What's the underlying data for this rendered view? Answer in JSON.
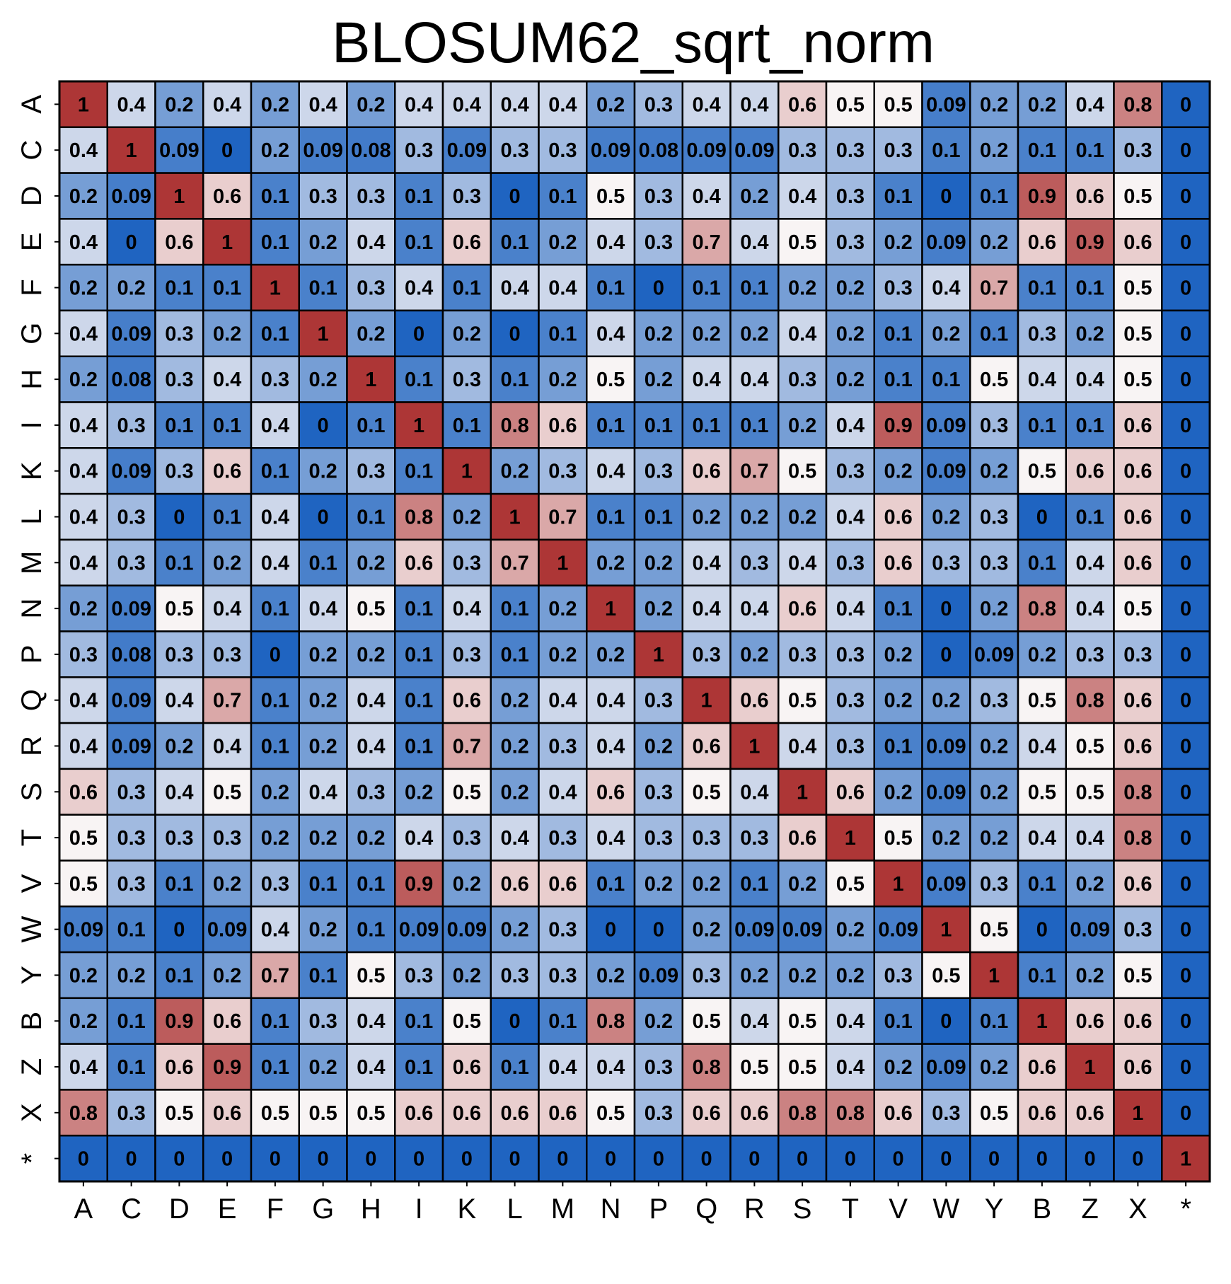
{
  "chart_data": {
    "type": "heatmap",
    "title": "BLOSUM62_sqrt_norm",
    "xlabel": "",
    "ylabel": "",
    "x_categories": [
      "A",
      "C",
      "D",
      "E",
      "F",
      "G",
      "H",
      "I",
      "K",
      "L",
      "M",
      "N",
      "P",
      "Q",
      "R",
      "S",
      "T",
      "V",
      "W",
      "Y",
      "B",
      "Z",
      "X",
      "*"
    ],
    "y_categories": [
      "A",
      "C",
      "D",
      "E",
      "F",
      "G",
      "H",
      "I",
      "K",
      "L",
      "M",
      "N",
      "P",
      "Q",
      "R",
      "S",
      "T",
      "V",
      "W",
      "Y",
      "B",
      "Z",
      "X",
      "*"
    ],
    "values": [
      [
        1,
        0.4,
        0.2,
        0.4,
        0.2,
        0.4,
        0.2,
        0.4,
        0.4,
        0.4,
        0.4,
        0.2,
        0.3,
        0.4,
        0.4,
        0.6,
        0.5,
        0.5,
        0.09,
        0.2,
        0.2,
        0.4,
        0.8,
        0
      ],
      [
        0.4,
        1,
        0.09,
        0,
        0.2,
        0.09,
        0.08,
        0.3,
        0.09,
        0.3,
        0.3,
        0.09,
        0.08,
        0.09,
        0.09,
        0.3,
        0.3,
        0.3,
        0.1,
        0.2,
        0.1,
        0.1,
        0.3,
        0
      ],
      [
        0.2,
        0.09,
        1,
        0.6,
        0.1,
        0.3,
        0.3,
        0.1,
        0.3,
        0,
        0.1,
        0.5,
        0.3,
        0.4,
        0.2,
        0.4,
        0.3,
        0.1,
        0,
        0.1,
        0.9,
        0.6,
        0.5,
        0
      ],
      [
        0.4,
        0,
        0.6,
        1,
        0.1,
        0.2,
        0.4,
        0.1,
        0.6,
        0.1,
        0.2,
        0.4,
        0.3,
        0.7,
        0.4,
        0.5,
        0.3,
        0.2,
        0.09,
        0.2,
        0.6,
        0.9,
        0.6,
        0
      ],
      [
        0.2,
        0.2,
        0.1,
        0.1,
        1,
        0.1,
        0.3,
        0.4,
        0.1,
        0.4,
        0.4,
        0.1,
        0,
        0.1,
        0.1,
        0.2,
        0.2,
        0.3,
        0.4,
        0.7,
        0.1,
        0.1,
        0.5,
        0
      ],
      [
        0.4,
        0.09,
        0.3,
        0.2,
        0.1,
        1,
        0.2,
        0,
        0.2,
        0,
        0.1,
        0.4,
        0.2,
        0.2,
        0.2,
        0.4,
        0.2,
        0.1,
        0.2,
        0.1,
        0.3,
        0.2,
        0.5,
        0
      ],
      [
        0.2,
        0.08,
        0.3,
        0.4,
        0.3,
        0.2,
        1,
        0.1,
        0.3,
        0.1,
        0.2,
        0.5,
        0.2,
        0.4,
        0.4,
        0.3,
        0.2,
        0.1,
        0.1,
        0.5,
        0.4,
        0.4,
        0.5,
        0
      ],
      [
        0.4,
        0.3,
        0.1,
        0.1,
        0.4,
        0,
        0.1,
        1,
        0.1,
        0.8,
        0.6,
        0.1,
        0.1,
        0.1,
        0.1,
        0.2,
        0.4,
        0.9,
        0.09,
        0.3,
        0.1,
        0.1,
        0.6,
        0
      ],
      [
        0.4,
        0.09,
        0.3,
        0.6,
        0.1,
        0.2,
        0.3,
        0.1,
        1,
        0.2,
        0.3,
        0.4,
        0.3,
        0.6,
        0.7,
        0.5,
        0.3,
        0.2,
        0.09,
        0.2,
        0.5,
        0.6,
        0.6,
        0
      ],
      [
        0.4,
        0.3,
        0,
        0.1,
        0.4,
        0,
        0.1,
        0.8,
        0.2,
        1,
        0.7,
        0.1,
        0.1,
        0.2,
        0.2,
        0.2,
        0.4,
        0.6,
        0.2,
        0.3,
        0,
        0.1,
        0.6,
        0
      ],
      [
        0.4,
        0.3,
        0.1,
        0.2,
        0.4,
        0.1,
        0.2,
        0.6,
        0.3,
        0.7,
        1,
        0.2,
        0.2,
        0.4,
        0.3,
        0.4,
        0.3,
        0.6,
        0.3,
        0.3,
        0.1,
        0.4,
        0.6,
        0
      ],
      [
        0.2,
        0.09,
        0.5,
        0.4,
        0.1,
        0.4,
        0.5,
        0.1,
        0.4,
        0.1,
        0.2,
        1,
        0.2,
        0.4,
        0.4,
        0.6,
        0.4,
        0.1,
        0,
        0.2,
        0.8,
        0.4,
        0.5,
        0
      ],
      [
        0.3,
        0.08,
        0.3,
        0.3,
        0,
        0.2,
        0.2,
        0.1,
        0.3,
        0.1,
        0.2,
        0.2,
        1,
        0.3,
        0.2,
        0.3,
        0.3,
        0.2,
        0,
        0.09,
        0.2,
        0.3,
        0.3,
        0
      ],
      [
        0.4,
        0.09,
        0.4,
        0.7,
        0.1,
        0.2,
        0.4,
        0.1,
        0.6,
        0.2,
        0.4,
        0.4,
        0.3,
        1,
        0.6,
        0.5,
        0.3,
        0.2,
        0.2,
        0.3,
        0.5,
        0.8,
        0.6,
        0
      ],
      [
        0.4,
        0.09,
        0.2,
        0.4,
        0.1,
        0.2,
        0.4,
        0.1,
        0.7,
        0.2,
        0.3,
        0.4,
        0.2,
        0.6,
        1,
        0.4,
        0.3,
        0.1,
        0.09,
        0.2,
        0.4,
        0.5,
        0.6,
        0
      ],
      [
        0.6,
        0.3,
        0.4,
        0.5,
        0.2,
        0.4,
        0.3,
        0.2,
        0.5,
        0.2,
        0.4,
        0.6,
        0.3,
        0.5,
        0.4,
        1,
        0.6,
        0.2,
        0.09,
        0.2,
        0.5,
        0.5,
        0.8,
        0
      ],
      [
        0.5,
        0.3,
        0.3,
        0.3,
        0.2,
        0.2,
        0.2,
        0.4,
        0.3,
        0.4,
        0.3,
        0.4,
        0.3,
        0.3,
        0.3,
        0.6,
        1,
        0.5,
        0.2,
        0.2,
        0.4,
        0.4,
        0.8,
        0
      ],
      [
        0.5,
        0.3,
        0.1,
        0.2,
        0.3,
        0.1,
        0.1,
        0.9,
        0.2,
        0.6,
        0.6,
        0.1,
        0.2,
        0.2,
        0.1,
        0.2,
        0.5,
        1,
        0.09,
        0.3,
        0.1,
        0.2,
        0.6,
        0
      ],
      [
        0.09,
        0.1,
        0,
        0.09,
        0.4,
        0.2,
        0.1,
        0.09,
        0.09,
        0.2,
        0.3,
        0,
        0,
        0.2,
        0.09,
        0.09,
        0.2,
        0.09,
        1,
        0.5,
        0,
        0.09,
        0.3,
        0
      ],
      [
        0.2,
        0.2,
        0.1,
        0.2,
        0.7,
        0.1,
        0.5,
        0.3,
        0.2,
        0.3,
        0.3,
        0.2,
        0.09,
        0.3,
        0.2,
        0.2,
        0.2,
        0.3,
        0.5,
        1,
        0.1,
        0.2,
        0.5,
        0
      ],
      [
        0.2,
        0.1,
        0.9,
        0.6,
        0.1,
        0.3,
        0.4,
        0.1,
        0.5,
        0,
        0.1,
        0.8,
        0.2,
        0.5,
        0.4,
        0.5,
        0.4,
        0.1,
        0,
        0.1,
        1,
        0.6,
        0.6,
        0
      ],
      [
        0.4,
        0.1,
        0.6,
        0.9,
        0.1,
        0.2,
        0.4,
        0.1,
        0.6,
        0.1,
        0.4,
        0.4,
        0.3,
        0.8,
        0.5,
        0.5,
        0.4,
        0.2,
        0.09,
        0.2,
        0.6,
        1,
        0.6,
        0
      ],
      [
        0.8,
        0.3,
        0.5,
        0.6,
        0.5,
        0.5,
        0.5,
        0.6,
        0.6,
        0.6,
        0.6,
        0.5,
        0.3,
        0.6,
        0.6,
        0.8,
        0.8,
        0.6,
        0.3,
        0.5,
        0.6,
        0.6,
        1,
        0
      ],
      [
        0,
        0,
        0,
        0,
        0,
        0,
        0,
        0,
        0,
        0,
        0,
        0,
        0,
        0,
        0,
        0,
        0,
        0,
        0,
        0,
        0,
        0,
        0,
        1
      ]
    ],
    "color_scale": {
      "low": "#1f64c1",
      "mid": "#f8f4f4",
      "high": "#ad3636",
      "domain": [
        0,
        0.5,
        1
      ]
    },
    "legend": "none",
    "grid": true
  }
}
